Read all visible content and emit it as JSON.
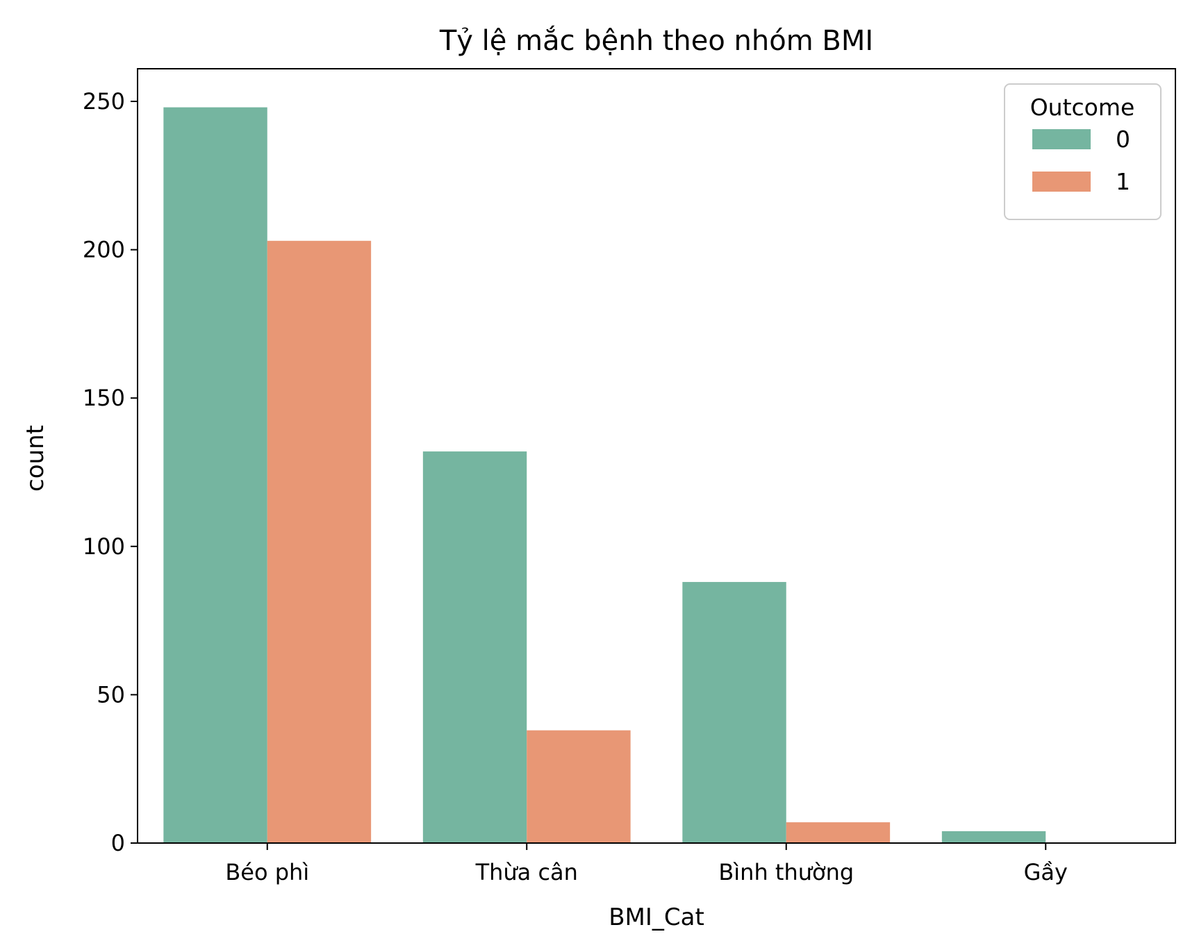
{
  "chart_data": {
    "type": "bar",
    "title": "Tỷ lệ mắc bệnh theo nhóm BMI",
    "xlabel": "BMI_Cat",
    "ylabel": "count",
    "categories": [
      "Béo phì",
      "Thừa cân",
      "Bình thường",
      "Gầy"
    ],
    "series": [
      {
        "name": "0",
        "values": [
          248,
          132,
          88,
          4
        ],
        "color": "#75b5a0"
      },
      {
        "name": "1",
        "values": [
          203,
          38,
          7,
          0
        ],
        "color": "#e89775"
      }
    ],
    "ylim": [
      0,
      261
    ],
    "yticks": [
      0,
      50,
      100,
      150,
      200,
      250
    ],
    "legend": {
      "title": "Outcome",
      "position": "top-right"
    },
    "grid": false
  }
}
